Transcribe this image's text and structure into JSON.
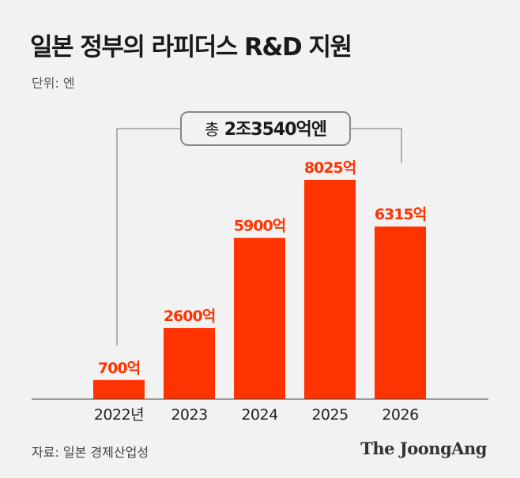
{
  "title": "일본 정부의 라피더스 R&D 지원",
  "unit_label": "단위: 엔",
  "source": "자료: 일본 경제산업성",
  "logo": "The JoongAng",
  "total": {
    "prefix": "총",
    "value": "2조3540억엔"
  },
  "colors": {
    "bar": "#ff3300",
    "label": "#ff3300",
    "background": "#f2f2f2",
    "bracket": "#999999"
  },
  "chart_data": {
    "type": "bar",
    "categories": [
      "2022년",
      "2023",
      "2024",
      "2025",
      "2026"
    ],
    "values": [
      700,
      2600,
      5900,
      8025,
      6315
    ],
    "value_labels": [
      "700억",
      "2600억",
      "5900억",
      "8025억",
      "6315억"
    ],
    "title": "일본 정부의 라피더스 R&D 지원",
    "ylabel": "단위: 엔",
    "ylim": [
      0,
      8025
    ],
    "grid": false,
    "legend": "none"
  }
}
